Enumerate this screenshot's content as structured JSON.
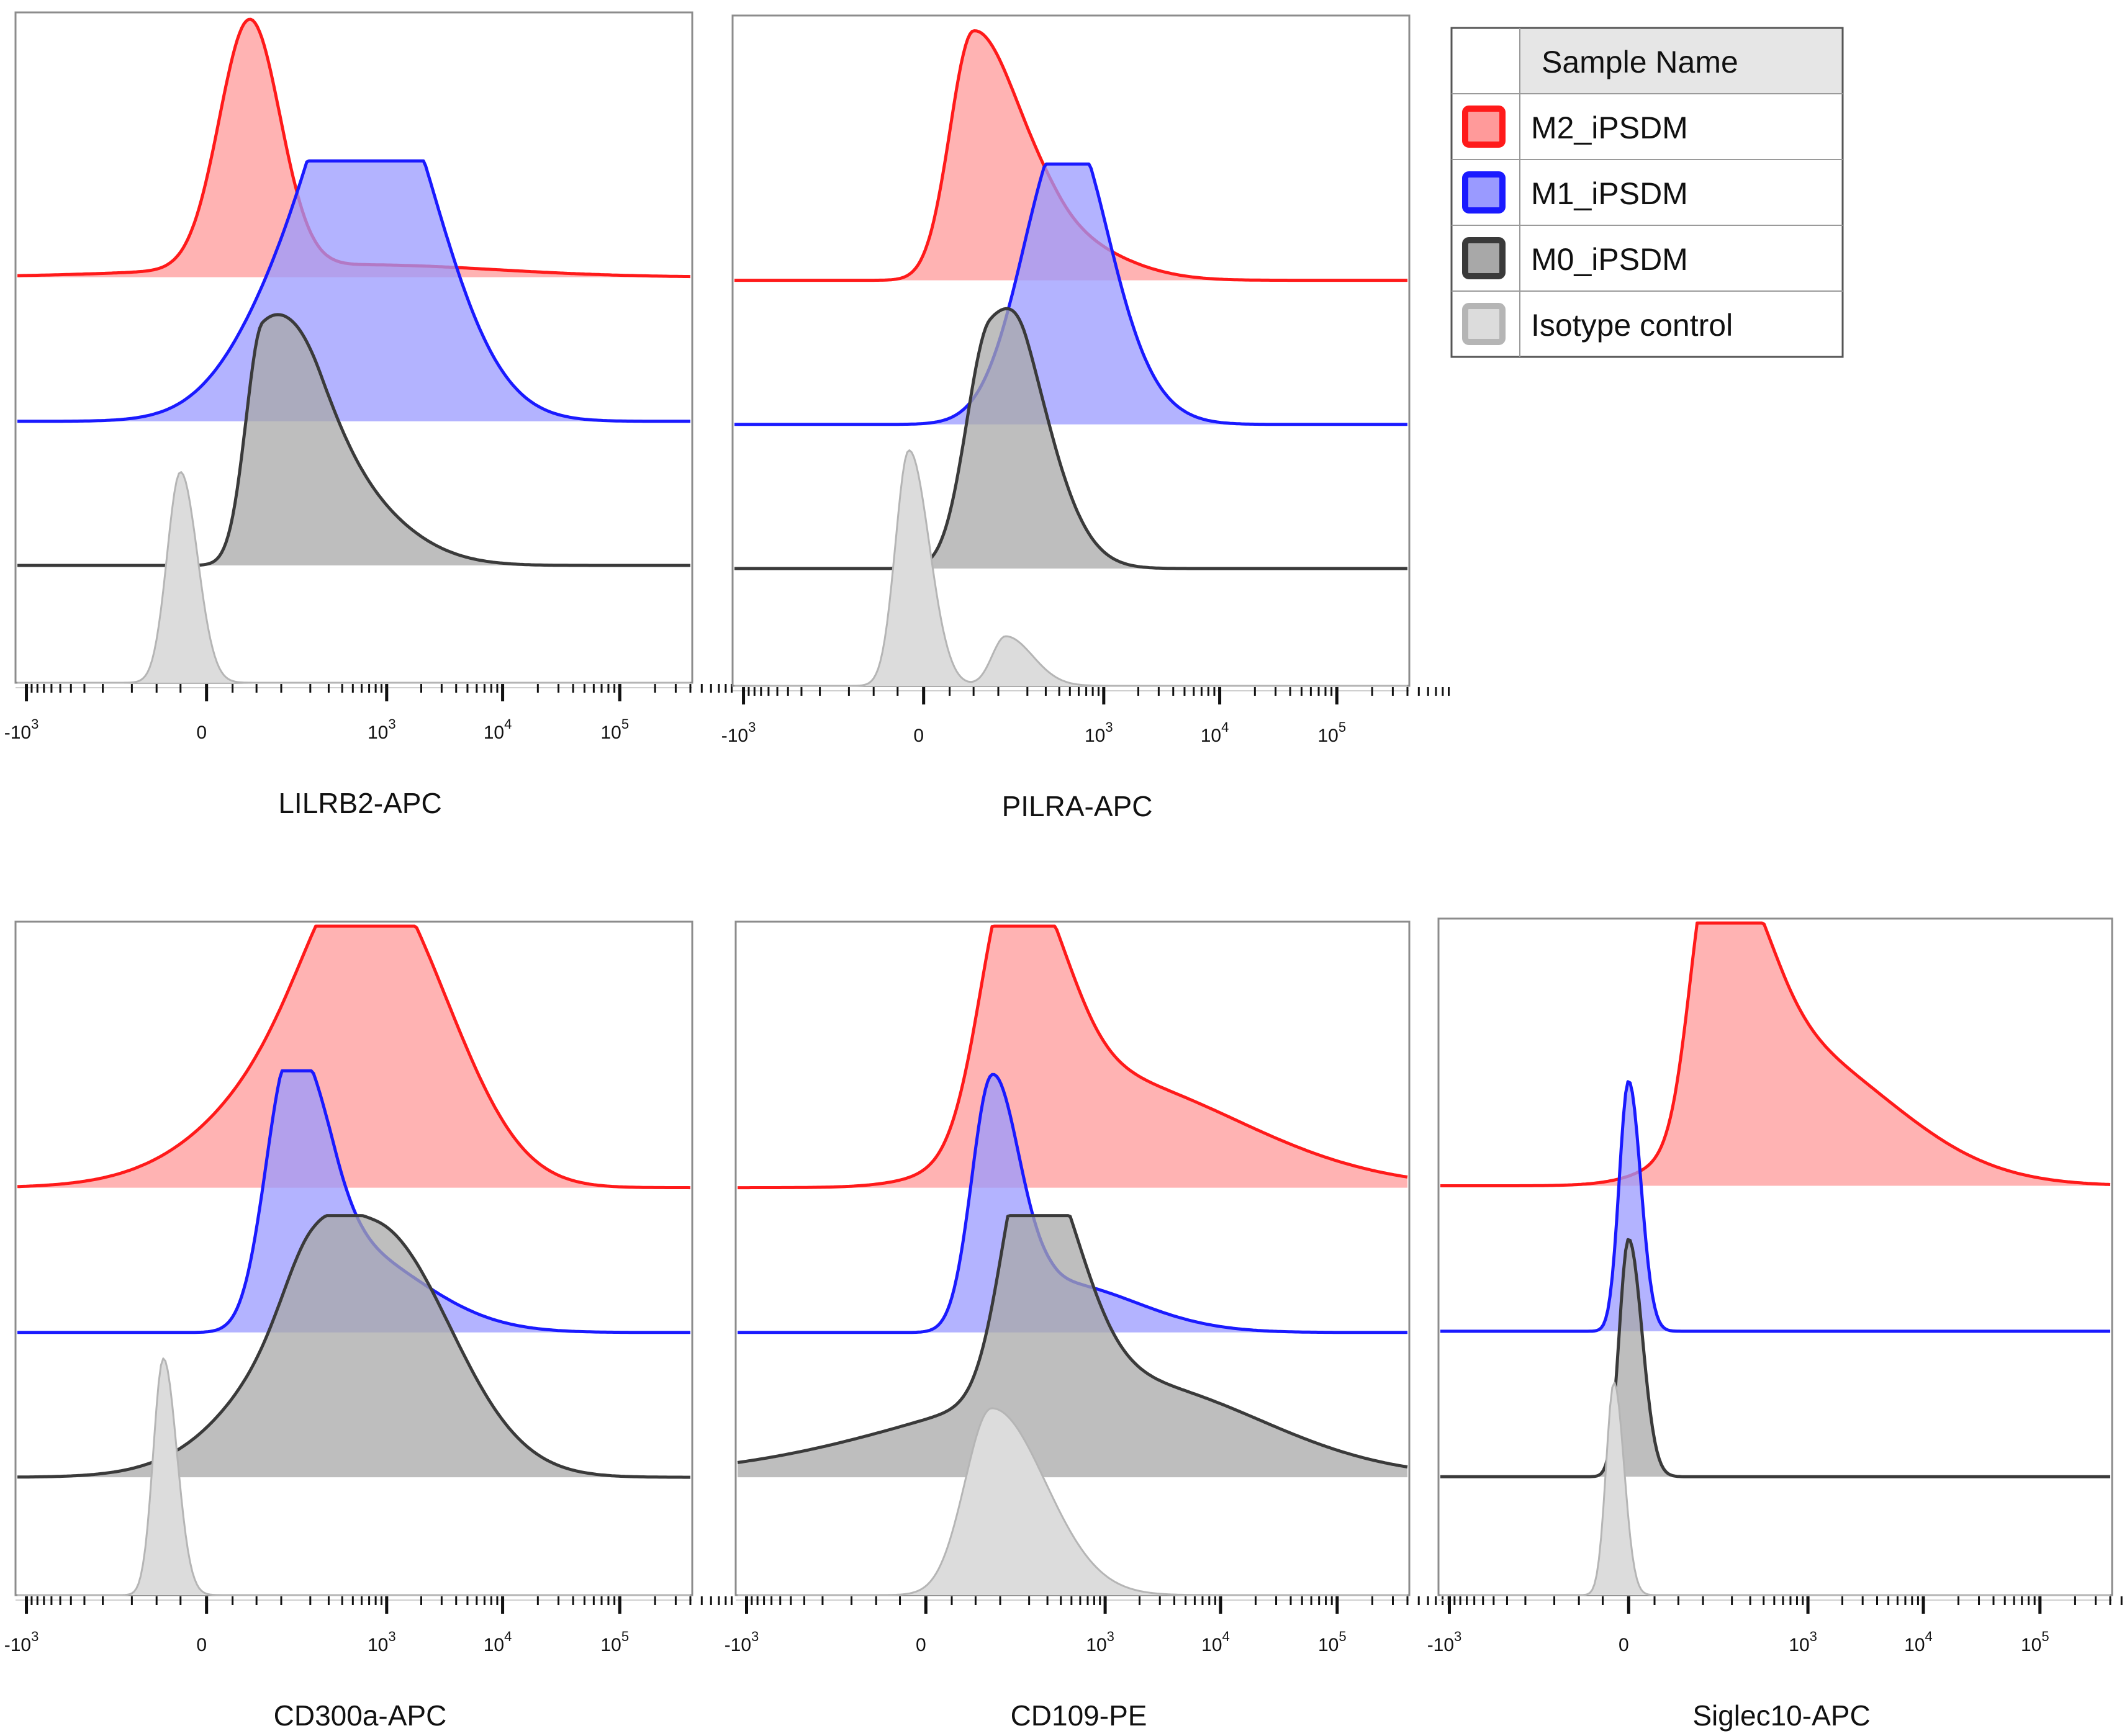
{
  "legend": {
    "header": "Sample Name",
    "entries": [
      {
        "label": "M2_iPSDM",
        "stroke": "#ff1a1a",
        "fill": "#ff9a9a"
      },
      {
        "label": "M1_iPSDM",
        "stroke": "#1a1aff",
        "fill": "#9a9aff"
      },
      {
        "label": "M0_iPSDM",
        "stroke": "#3a3a3a",
        "fill": "#a8a8a8"
      },
      {
        "label": "Isotype control",
        "stroke": "#b5b5b5",
        "fill": "#dcdcdc"
      }
    ]
  },
  "axis_ticks": [
    {
      "base": "-10",
      "exp": "3",
      "value": -1000
    },
    {
      "base": "0",
      "exp": "",
      "value": 0
    },
    {
      "base": "10",
      "exp": "3",
      "value": 1000
    },
    {
      "base": "10",
      "exp": "4",
      "value": 10000
    },
    {
      "base": "10",
      "exp": "5",
      "value": 100000
    }
  ],
  "chart_data": [
    {
      "type": "histogram",
      "title": "",
      "xlabel": "LILRB2-APC",
      "ylabel": "",
      "x_scale": "biexponential",
      "xlim": [
        -1500,
        200000
      ],
      "series": [
        {
          "name": "M2_iPSDM",
          "peaks": [
            {
              "x": 40,
              "h": 1.0,
              "l": 0.045,
              "r": 0.045
            },
            {
              "x": 600,
              "h": 0.05,
              "l": 0.25,
              "r": 0.2
            }
          ]
        },
        {
          "name": "M1_iPSDM",
          "peaks": [
            {
              "x": 300,
              "h": 0.85,
              "l": 0.1,
              "r": 0.11
            },
            {
              "x": 650,
              "h": 0.65,
              "l": 0.06,
              "r": 0.1
            },
            {
              "x": 1400,
              "h": 0.25,
              "l": 0.06,
              "r": 0.09
            }
          ]
        },
        {
          "name": "M0_iPSDM",
          "peaks": [
            {
              "x": 60,
              "h": 0.9,
              "l": 0.025,
              "r": 0.07
            },
            {
              "x": 250,
              "h": 0.35,
              "l": 0.05,
              "r": 0.1
            }
          ]
        },
        {
          "name": "Isotype control",
          "peaks": [
            {
              "x": -20,
              "h": 0.85,
              "l": 0.02,
              "r": 0.025
            }
          ]
        }
      ]
    },
    {
      "type": "histogram",
      "title": "",
      "xlabel": "PILRA-APC",
      "ylabel": "",
      "x_scale": "biexponential",
      "xlim": [
        -1500,
        200000
      ],
      "series": [
        {
          "name": "M2_iPSDM",
          "peaks": [
            {
              "x": 50,
              "h": 1.0,
              "l": 0.035,
              "r": 0.07
            },
            {
              "x": 400,
              "h": 0.15,
              "l": 0.05,
              "r": 0.09
            }
          ]
        },
        {
          "name": "M1_iPSDM",
          "peaks": [
            {
              "x": 400,
              "h": 1.0,
              "l": 0.06,
              "r": 0.06
            },
            {
              "x": 800,
              "h": 0.3,
              "l": 0.05,
              "r": 0.07
            }
          ]
        },
        {
          "name": "M0_iPSDM",
          "peaks": [
            {
              "x": 80,
              "h": 0.95,
              "l": 0.035,
              "r": 0.06
            },
            {
              "x": 200,
              "h": 0.3,
              "l": 0.03,
              "r": 0.06
            }
          ]
        },
        {
          "name": "Isotype control",
          "peaks": [
            {
              "x": -10,
              "h": 0.95,
              "l": 0.02,
              "r": 0.03
            },
            {
              "x": 120,
              "h": 0.2,
              "l": 0.02,
              "r": 0.04
            }
          ]
        }
      ]
    },
    {
      "type": "histogram",
      "title": "",
      "xlabel": "CD300a-APC",
      "ylabel": "",
      "x_scale": "biexponential",
      "xlim": [
        -1500,
        200000
      ],
      "series": [
        {
          "name": "M2_iPSDM",
          "peaks": [
            {
              "x": 1150,
              "h": 1.0,
              "l": 0.17,
              "r": 0.1
            },
            {
              "x": 500,
              "h": 0.35,
              "l": 0.07,
              "r": 0.06
            }
          ]
        },
        {
          "name": "M1_iPSDM",
          "peaks": [
            {
              "x": 120,
              "h": 1.0,
              "l": 0.035,
              "r": 0.05
            },
            {
              "x": 350,
              "h": 0.35,
              "l": 0.05,
              "r": 0.12
            }
          ]
        },
        {
          "name": "M0_iPSDM",
          "peaks": [
            {
              "x": 800,
              "h": 1.0,
              "l": 0.14,
              "r": 0.11
            },
            {
              "x": 200,
              "h": 0.2,
              "l": 0.04,
              "r": 0.05
            }
          ]
        },
        {
          "name": "Isotype control",
          "peaks": [
            {
              "x": -40,
              "h": 0.95,
              "l": 0.015,
              "r": 0.02
            }
          ]
        }
      ]
    },
    {
      "type": "histogram",
      "title": "",
      "xlabel": "CD109-PE",
      "ylabel": "",
      "x_scale": "biexponential",
      "xlim": [
        -1500,
        200000
      ],
      "series": [
        {
          "name": "M2_iPSDM",
          "peaks": [
            {
              "x": 130,
              "h": 1.0,
              "l": 0.045,
              "r": 0.07
            },
            {
              "x": 700,
              "h": 0.45,
              "l": 0.12,
              "r": 0.22
            }
          ]
        },
        {
          "name": "M1_iPSDM",
          "peaks": [
            {
              "x": 80,
              "h": 1.0,
              "l": 0.03,
              "r": 0.04
            },
            {
              "x": 350,
              "h": 0.2,
              "l": 0.05,
              "r": 0.12
            }
          ]
        },
        {
          "name": "M0_iPSDM",
          "peaks": [
            {
              "x": 200,
              "h": 1.0,
              "l": 0.04,
              "r": 0.07
            },
            {
              "x": 1500,
              "h": 0.38,
              "l": 0.3,
              "r": 0.2
            }
          ]
        },
        {
          "name": "Isotype control",
          "peaks": [
            {
              "x": 80,
              "h": 0.75,
              "l": 0.04,
              "r": 0.08
            }
          ]
        }
      ]
    },
    {
      "type": "histogram",
      "title": "",
      "xlabel": "Siglec10-APC",
      "ylabel": "",
      "x_scale": "biexponential",
      "xlim": [
        -1500,
        200000
      ],
      "series": [
        {
          "name": "M2_iPSDM",
          "peaks": [
            {
              "x": 120,
              "h": 1.0,
              "l": 0.03,
              "r": 0.07
            },
            {
              "x": 600,
              "h": 0.55,
              "l": 0.1,
              "r": 0.16
            }
          ]
        },
        {
          "name": "M1_iPSDM",
          "peaks": [
            {
              "x": 0,
              "h": 1.0,
              "l": 0.014,
              "r": 0.018
            }
          ]
        },
        {
          "name": "M0_iPSDM",
          "peaks": [
            {
              "x": 0,
              "h": 0.95,
              "l": 0.014,
              "r": 0.02
            }
          ]
        },
        {
          "name": "Isotype control",
          "peaks": [
            {
              "x": -10,
              "h": 0.85,
              "l": 0.012,
              "r": 0.015
            }
          ]
        }
      ]
    }
  ]
}
